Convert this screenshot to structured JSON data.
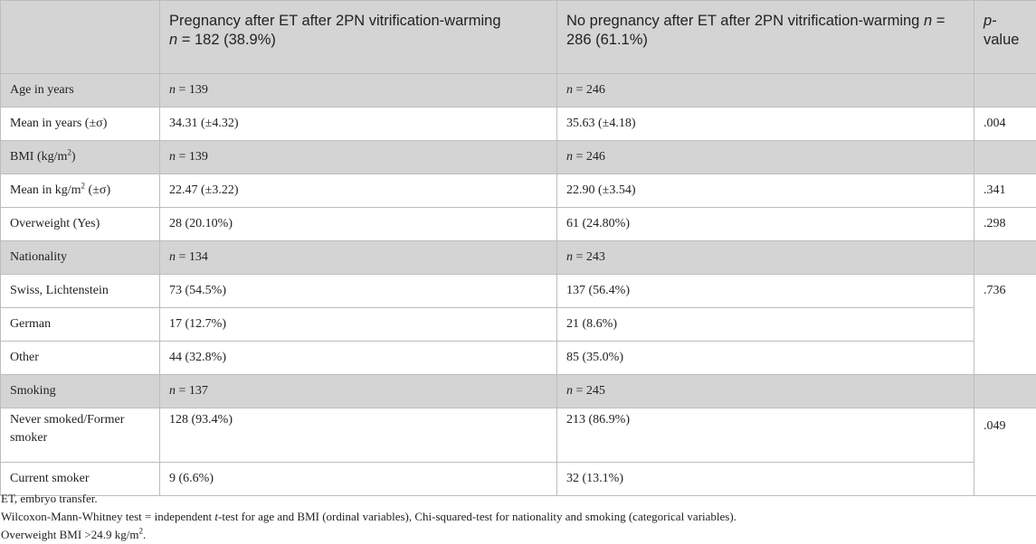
{
  "header": {
    "col0": "",
    "col1_title": "Pregnancy after ET after 2PN vitrification-warming",
    "col1_n_label": "n",
    "col1_n_value": " = 182 (38.9%)",
    "col2_title": "No pregnancy after ET after 2PN vitrification-warming",
    "col2_n_label": "n",
    "col2_n_value": " = 286 (61.1%)",
    "col3_p": "p",
    "col3_rest": "-value"
  },
  "rows": {
    "age": {
      "label": "Age in years",
      "n1_label": "n",
      "n1_value": " = 139",
      "n2_label": "n",
      "n2_value": " = 246"
    },
    "age_mean": {
      "label": "Mean in years (±σ)",
      "v1": "34.31 (±4.32)",
      "v2": "35.63 (±4.18)",
      "p": ".004"
    },
    "bmi": {
      "label_pre": "BMI (kg/m",
      "label_sup": "2",
      "label_post": ")",
      "n1_label": "n",
      "n1_value": " = 139",
      "n2_label": "n",
      "n2_value": " = 246"
    },
    "bmi_mean": {
      "label_pre": "Mean in kg/m",
      "label_sup": "2",
      "label_post": " (±σ)",
      "v1": "22.47 (±3.22)",
      "v2": "22.90 (±3.54)",
      "p": ".341"
    },
    "overweight": {
      "label": "Overweight (Yes)",
      "v1": "28 (20.10%)",
      "v2": "61 (24.80%)",
      "p": ".298"
    },
    "nationality": {
      "label": "Nationality",
      "n1_label": "n",
      "n1_value": " = 134",
      "n2_label": "n",
      "n2_value": " = 243"
    },
    "swiss": {
      "label": "Swiss, Lichtenstein",
      "v1": "73 (54.5%)",
      "v2": "137 (56.4%)",
      "p": ".736"
    },
    "german": {
      "label": "German",
      "v1": "17 (12.7%)",
      "v2": "21 (8.6%)"
    },
    "other": {
      "label": "Other",
      "v1": "44 (32.8%)",
      "v2": "85 (35.0%)"
    },
    "smoking": {
      "label": "Smoking",
      "n1_label": "n",
      "n1_value": " = 137",
      "n2_label": "n",
      "n2_value": " = 245"
    },
    "never": {
      "label": "Never smoked/Former smoker",
      "v1": "128 (93.4%)",
      "v2": "213 (86.9%)",
      "p": ".049"
    },
    "current": {
      "label": "Current smoker",
      "v1": "9 (6.6%)",
      "v2": "32 (13.1%)"
    }
  },
  "notes": {
    "line1": "ET, embryo transfer.",
    "line2_pre": "Wilcoxon-Mann-Whitney test = independent ",
    "line2_t": "t",
    "line2_post": "-test for age and BMI (ordinal variables), Chi-squared-test for nationality and smoking (categorical variables).",
    "line3_pre": "Overweight BMI >24.9 kg/m",
    "line3_sup": "2",
    "line3_post": "."
  }
}
